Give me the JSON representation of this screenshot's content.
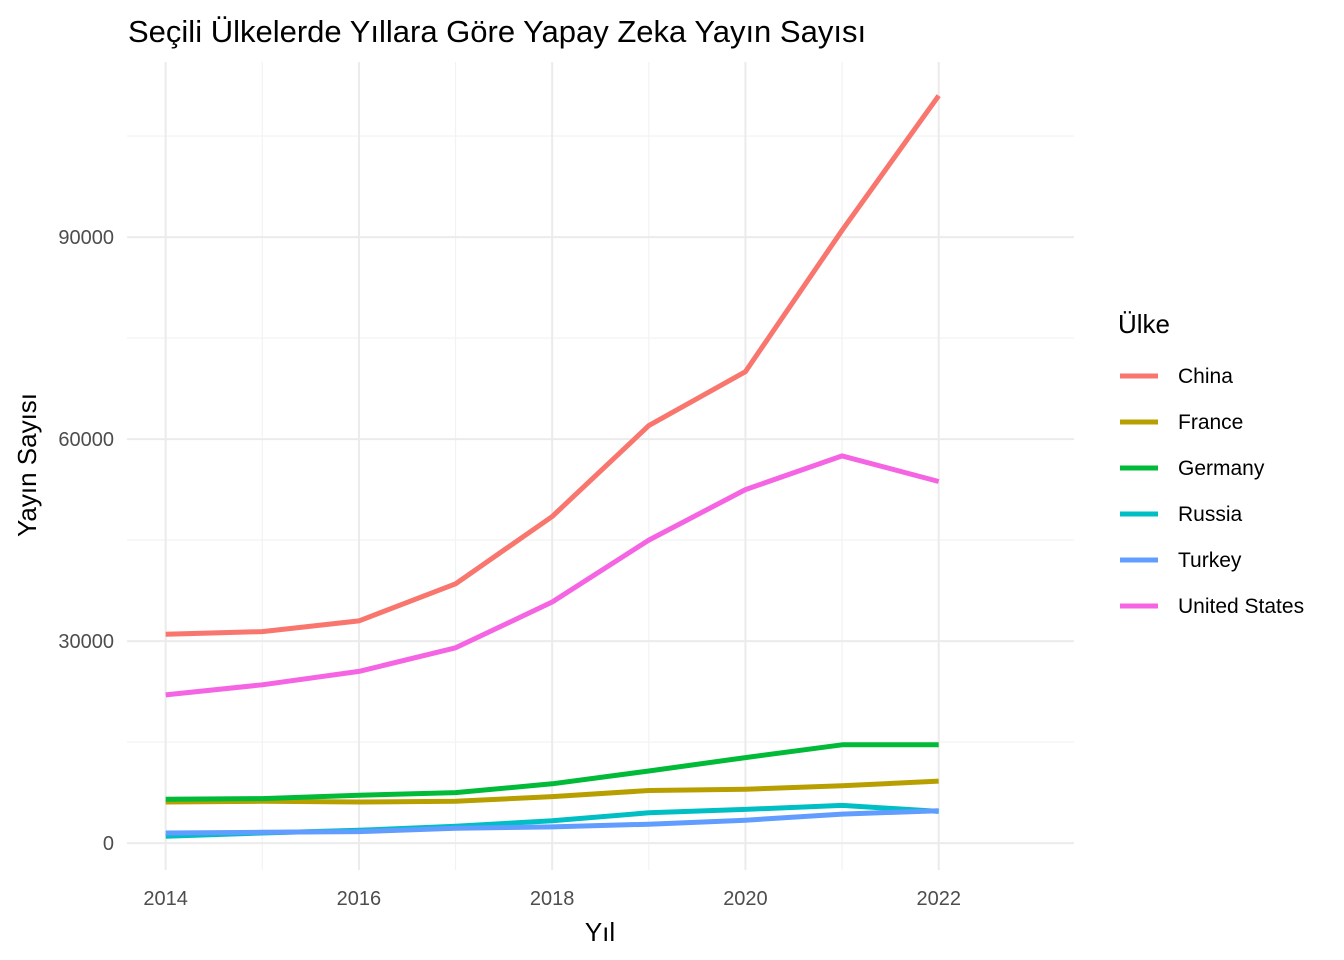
{
  "chart_data": {
    "type": "line",
    "title": "Seçili Ülkelerde Yıllara Göre Yapay Zeka Yayın Sayısı",
    "xlabel": "Yıl",
    "ylabel": "Yayın Sayısı",
    "x": [
      2014,
      2015,
      2016,
      2017,
      2018,
      2019,
      2020,
      2021,
      2022
    ],
    "xlim": [
      2013.6,
      2023.4
    ],
    "ylim": [
      -4000,
      116000
    ],
    "x_ticks": [
      2014,
      2016,
      2018,
      2020,
      2022
    ],
    "x_tick_labels": [
      "2014",
      "2016",
      "2018",
      "2020",
      "2022"
    ],
    "y_ticks": [
      0,
      30000,
      60000,
      90000
    ],
    "y_tick_labels": [
      "0",
      "30000",
      "60000",
      "90000"
    ],
    "grid": true,
    "legend": {
      "title": "Ülke",
      "position": "right"
    },
    "series": [
      {
        "name": "China",
        "color": "#F8766D",
        "values": [
          31000,
          31400,
          33000,
          38500,
          48500,
          62000,
          70000,
          91000,
          111000
        ]
      },
      {
        "name": "France",
        "color": "#B79F00",
        "values": [
          6100,
          6200,
          6100,
          6200,
          6900,
          7800,
          8000,
          8500,
          9200
        ]
      },
      {
        "name": "Germany",
        "color": "#00BA38",
        "values": [
          6500,
          6600,
          7100,
          7500,
          8800,
          10700,
          12700,
          14600,
          14600
        ]
      },
      {
        "name": "Russia",
        "color": "#00BFC4",
        "values": [
          1000,
          1500,
          1900,
          2500,
          3300,
          4500,
          5000,
          5600,
          4700
        ]
      },
      {
        "name": "Turkey",
        "color": "#619CFF",
        "values": [
          1500,
          1600,
          1700,
          2200,
          2400,
          2800,
          3400,
          4300,
          4800
        ]
      },
      {
        "name": "United States",
        "color": "#F564E3",
        "values": [
          22000,
          23500,
          25500,
          29000,
          35800,
          45000,
          52500,
          57500,
          53700
        ]
      }
    ]
  }
}
